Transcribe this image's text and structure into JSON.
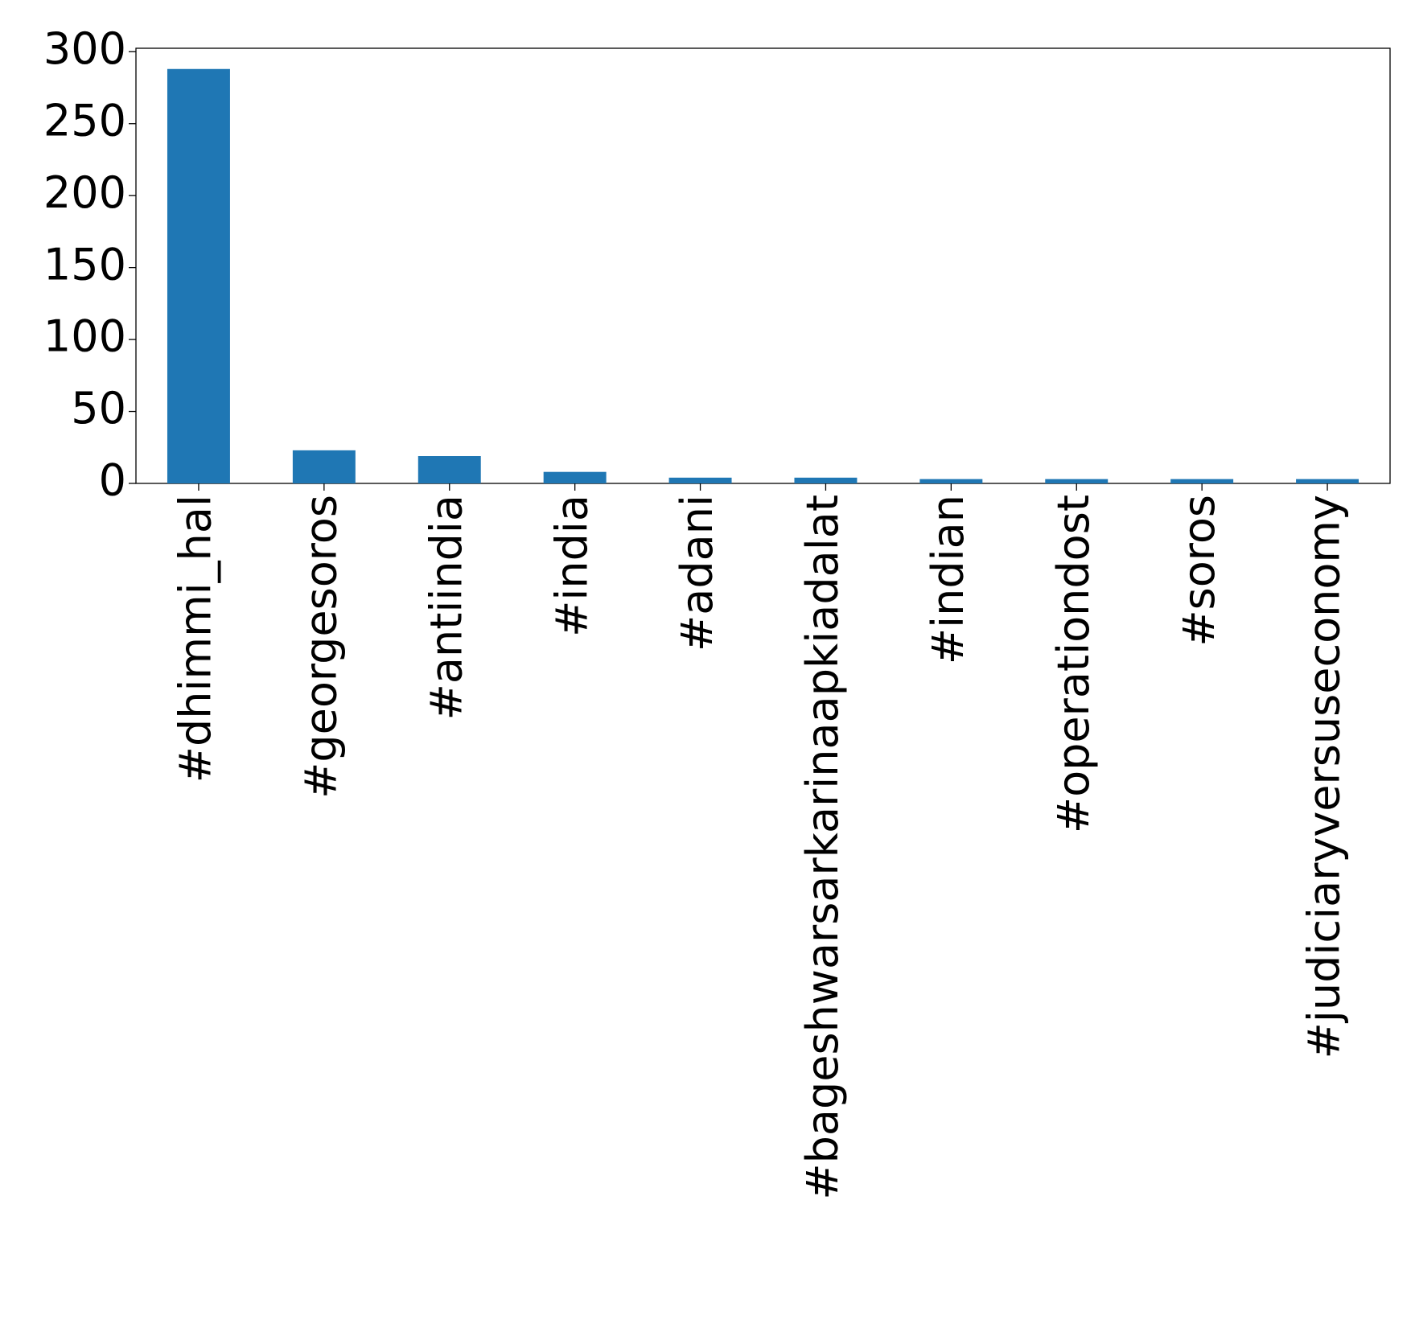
{
  "chart_data": {
    "type": "bar",
    "categories": [
      "#dhimmi_hal",
      "#georgesoros",
      "#antiindia",
      "#india",
      "#adani",
      "#bageshwarsarkarinaapkiadalat",
      "#indian",
      "#operationdost",
      "#soros",
      "#judiciaryversuseconomy"
    ],
    "values": [
      288,
      23,
      19,
      8,
      4,
      4,
      3,
      3,
      3,
      3
    ],
    "color": "#1f77b4",
    "ylim": [
      0,
      302.4
    ],
    "yticks": [
      0,
      50,
      100,
      150,
      200,
      250,
      300
    ],
    "grid": false
  }
}
